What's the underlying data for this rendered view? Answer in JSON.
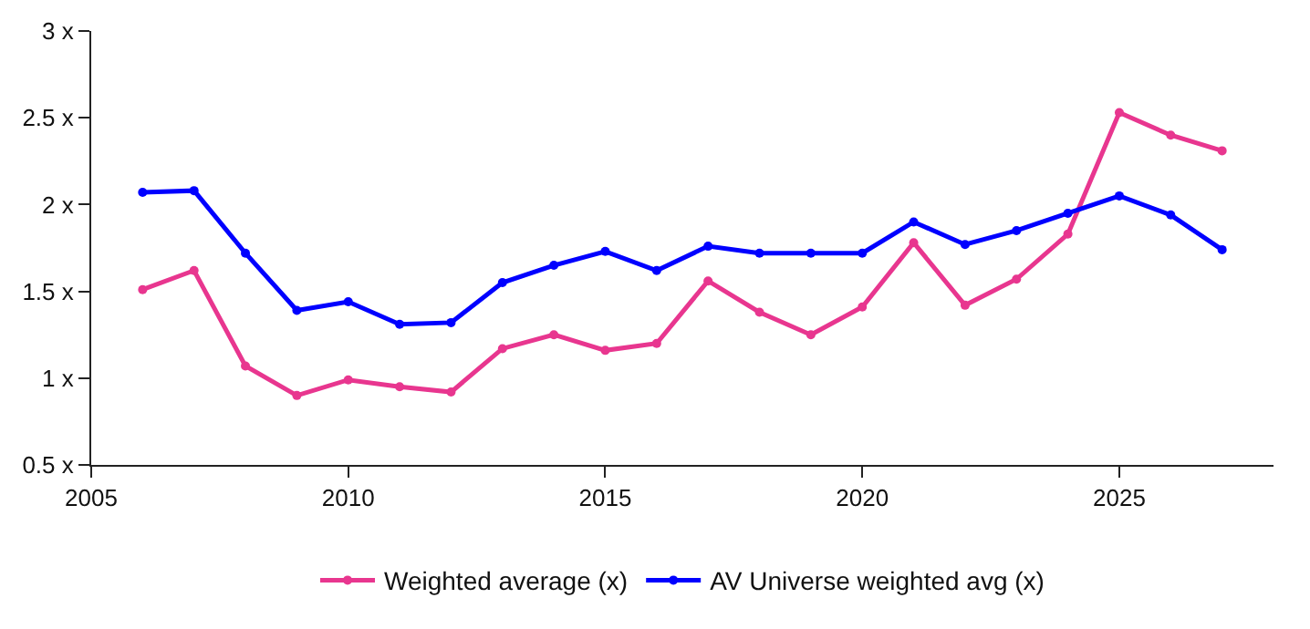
{
  "chart_data": {
    "type": "line",
    "x": [
      2006,
      2007,
      2008,
      2009,
      2010,
      2011,
      2012,
      2013,
      2014,
      2015,
      2016,
      2017,
      2018,
      2019,
      2020,
      2021,
      2022,
      2023,
      2024,
      2025,
      2026,
      2027
    ],
    "series": [
      {
        "name": "Weighted average (x)",
        "color": "#e8368f",
        "values": [
          1.51,
          1.62,
          1.07,
          0.9,
          0.99,
          0.95,
          0.92,
          1.17,
          1.25,
          1.16,
          1.2,
          1.56,
          1.38,
          1.25,
          1.41,
          1.78,
          1.42,
          1.57,
          1.83,
          2.53,
          2.4,
          2.31
        ]
      },
      {
        "name": "AV Universe weighted avg (x)",
        "color": "#0000ff",
        "values": [
          2.07,
          2.08,
          1.72,
          1.39,
          1.44,
          1.31,
          1.32,
          1.55,
          1.65,
          1.73,
          1.62,
          1.76,
          1.72,
          1.72,
          1.72,
          1.9,
          1.77,
          1.85,
          1.95,
          2.05,
          1.94,
          1.74
        ]
      }
    ],
    "xlim": [
      2005,
      2028
    ],
    "xticks": [
      2005,
      2010,
      2015,
      2020,
      2025
    ],
    "ylim": [
      0.5,
      3
    ],
    "yticks": [
      {
        "value": 0.5,
        "label": "0.5 x"
      },
      {
        "value": 1,
        "label": "1 x"
      },
      {
        "value": 1.5,
        "label": "1.5 x"
      },
      {
        "value": 2,
        "label": "2 x"
      },
      {
        "value": 2.5,
        "label": "2.5 x"
      },
      {
        "value": 3,
        "label": "3 x"
      }
    ],
    "legend": "bottom",
    "marker": "circle",
    "line_style": "solid"
  }
}
